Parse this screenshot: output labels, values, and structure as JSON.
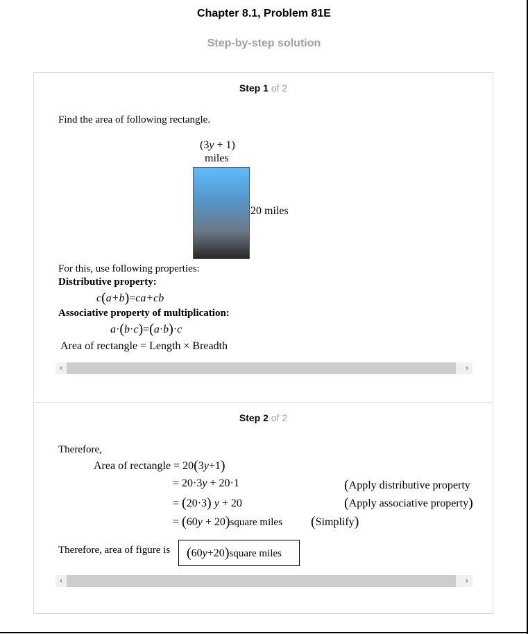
{
  "header": {
    "title": "Chapter 8.1, Problem 81E",
    "subtitle": "Step-by-step solution"
  },
  "step1": {
    "label": "Step 1",
    "of": "of 2",
    "intro": "Find the area of following rectangle.",
    "figure": {
      "top_label_line1": "(3y + 1)",
      "top_label_line2": "miles",
      "side_label": "20 miles"
    },
    "properties_intro": "For this, use following properties:",
    "distributive_title": "Distributive property:",
    "distributive_formula": "c(a+b) = ca+cb",
    "associative_title": "Associative property of multiplication:",
    "associative_formula": "a·(b·c) = (a·b)·c",
    "area_formula": "Area of rectangle = Length × Breadth"
  },
  "step2": {
    "label": "Step 2",
    "of": "of 2",
    "therefore": "Therefore,",
    "lines": [
      {
        "lhs": "Area of rectangle = 20(3y+1)",
        "note": ""
      },
      {
        "lhs": "= 20·3y + 20·1",
        "note": "(Apply distributive property"
      },
      {
        "lhs": "= (20·3)y + 20",
        "note": "(Apply associative property)"
      },
      {
        "lhs": "= (60y + 20)square miles",
        "note": "(Simplify)"
      }
    ],
    "conclusion": "Therefore, area of figure is",
    "answer": "(60y + 20)square miles"
  },
  "icons": {
    "scroll_left": "chevron-left-icon",
    "scroll_right": "chevron-right-icon"
  }
}
